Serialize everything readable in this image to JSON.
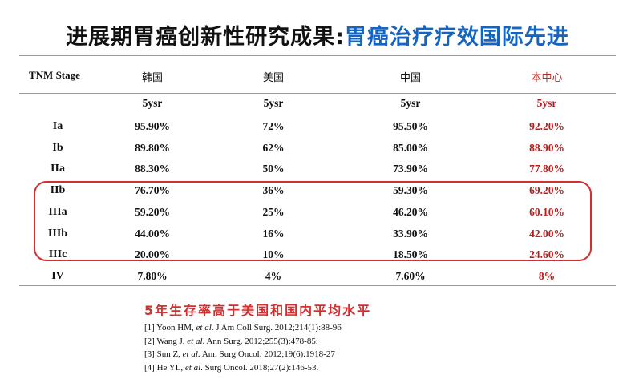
{
  "title": {
    "main": "进展期胃癌创新性研究成果:",
    "accent": "胃癌治疗疗效国际先进"
  },
  "table": {
    "columns": [
      "TNM Stage",
      "韩国",
      "美国",
      "中国",
      "本中心"
    ],
    "subheaders": [
      "5ysr",
      "5ysr",
      "5ysr",
      "5ysr"
    ],
    "rows": [
      {
        "stage": "Ia",
        "values": [
          "95.90%",
          "72%",
          "95.50%",
          "92.20%"
        ]
      },
      {
        "stage": "Ib",
        "values": [
          "89.80%",
          "62%",
          "85.00%",
          "88.90%"
        ]
      },
      {
        "stage": "IIa",
        "values": [
          "88.30%",
          "50%",
          "73.90%",
          "77.80%"
        ]
      },
      {
        "stage": "IIb",
        "values": [
          "76.70%",
          "36%",
          "59.30%",
          "69.20%"
        ]
      },
      {
        "stage": "IIIa",
        "values": [
          "59.20%",
          "25%",
          "46.20%",
          "60.10%"
        ]
      },
      {
        "stage": "IIIb",
        "values": [
          "44.00%",
          "16%",
          "33.90%",
          "42.00%"
        ]
      },
      {
        "stage": "IIIc",
        "values": [
          "20.00%",
          "10%",
          "18.50%",
          "24.60%"
        ]
      },
      {
        "stage": "IV",
        "values": [
          "7.80%",
          "4%",
          "7.60%",
          "8%"
        ]
      }
    ]
  },
  "summary": "5年生存率高于美国和国内平均水平",
  "references": [
    {
      "pre": "[1] Yoon HM, ",
      "etal": "et al",
      "post": ". J Am Coll Surg. 2012;214(1):88-96"
    },
    {
      "pre": "[2] Wang J, ",
      "etal": "et al",
      "post": ". Ann Surg. 2012;255(3):478-85;"
    },
    {
      "pre": "[3] Sun Z, ",
      "etal": "et al",
      "post": ". Ann Surg Oncol. 2012;19(6):1918-27"
    },
    {
      "pre": "[4] He YL, ",
      "etal": "et al",
      "post": ". Surg Oncol. 2018;27(2):146-53."
    }
  ],
  "colors": {
    "accent_blue": "#1565c0",
    "highlight_red": "#d32f2f"
  }
}
